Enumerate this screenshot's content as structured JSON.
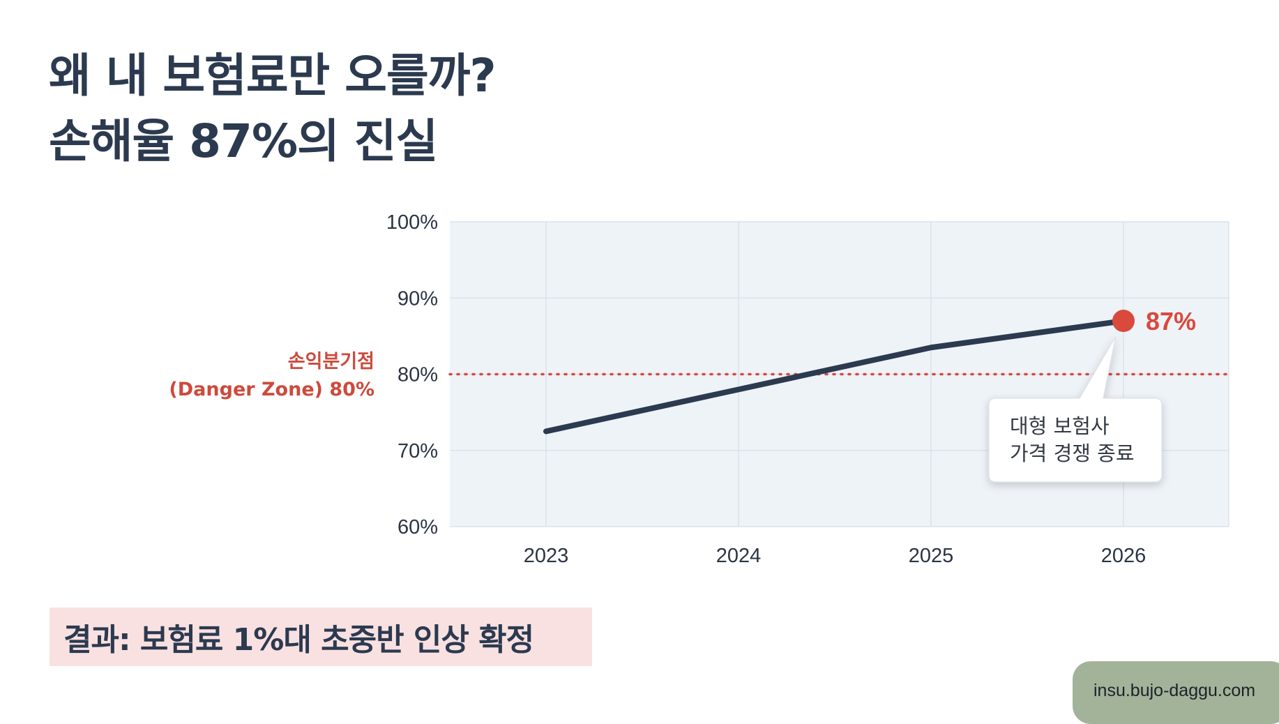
{
  "title": {
    "line1": "왜 내 보험료만 오를까?",
    "line2": "손해율 87%의 진실"
  },
  "chart_data": {
    "type": "line",
    "x": [
      "2023",
      "2024",
      "2025",
      "2026"
    ],
    "series": [
      {
        "values": [
          72.5,
          78,
          83.5,
          87
        ]
      }
    ],
    "ylim": [
      60,
      100
    ],
    "yticks": [
      60,
      70,
      80,
      90,
      100
    ],
    "ytick_labels": [
      "60%",
      "70%",
      "80%",
      "90%",
      "100%"
    ],
    "grid": true,
    "threshold": {
      "value": 80,
      "label_line1": "손익분기점",
      "label_line2": "(Danger Zone) 80%",
      "color": "#d9493c"
    },
    "end_label": "87%",
    "annotation": {
      "line1": "대형 보험사",
      "line2": "가격 경쟁 종료"
    },
    "line_color": "#2b3a4f",
    "marker_color": "#d9493c",
    "plot_bg": "#eef3f8"
  },
  "result": {
    "text": "결과: 보험료 1%대 초중반 인상 확정"
  },
  "site": {
    "url": "insu.bujo-daggu.com"
  }
}
